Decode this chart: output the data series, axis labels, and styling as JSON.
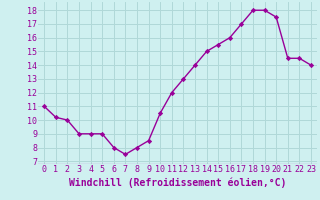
{
  "x": [
    0,
    1,
    2,
    3,
    4,
    5,
    6,
    7,
    8,
    9,
    10,
    11,
    12,
    13,
    14,
    15,
    16,
    17,
    18,
    19,
    20,
    21,
    22,
    23
  ],
  "y": [
    11.0,
    10.2,
    10.0,
    9.0,
    9.0,
    9.0,
    8.0,
    7.5,
    8.0,
    8.5,
    10.5,
    12.0,
    13.0,
    14.0,
    15.0,
    15.5,
    16.0,
    17.0,
    18.0,
    18.0,
    17.5,
    14.5,
    14.5,
    14.0
  ],
  "line_color": "#990099",
  "marker": "D",
  "marker_size": 2.2,
  "bg_color": "#cff0f0",
  "grid_color": "#b0d8d8",
  "xlabel": "Windchill (Refroidissement éolien,°C)",
  "xlabel_color": "#990099",
  "xlabel_fontsize": 7,
  "ylabel_ticks": [
    7,
    8,
    9,
    10,
    11,
    12,
    13,
    14,
    15,
    16,
    17,
    18
  ],
  "xtick_labels": [
    "0",
    "1",
    "2",
    "3",
    "4",
    "5",
    "6",
    "7",
    "8",
    "9",
    "10",
    "11",
    "12",
    "13",
    "14",
    "15",
    "16",
    "17",
    "18",
    "19",
    "20",
    "21",
    "22",
    "23"
  ],
  "ylim": [
    6.8,
    18.6
  ],
  "xlim": [
    -0.5,
    23.5
  ],
  "tick_fontsize": 6,
  "tick_color": "#990099",
  "linewidth": 1.0
}
